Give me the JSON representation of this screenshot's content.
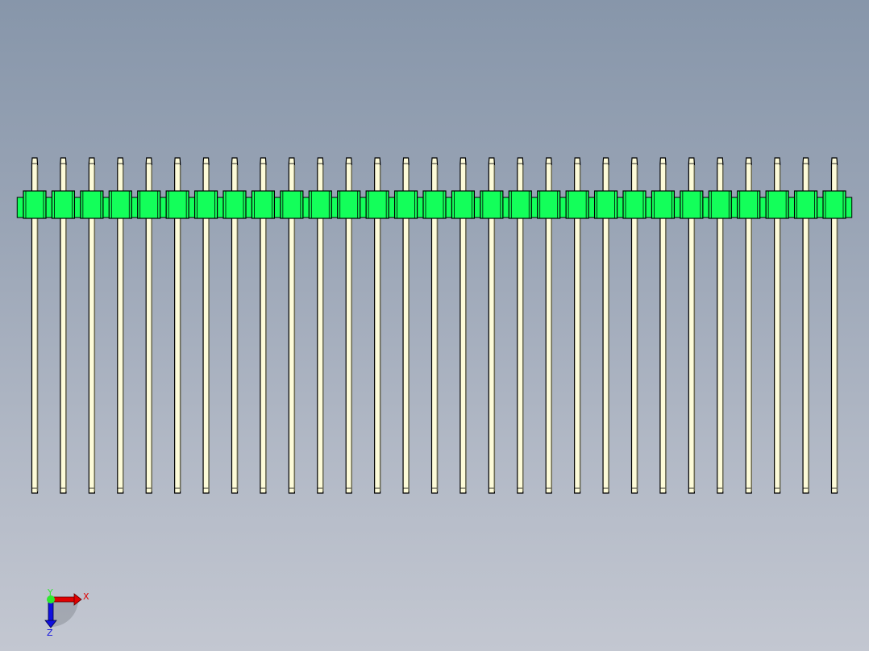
{
  "model": {
    "pin_count": 29,
    "colors": {
      "housing": "#13ff5a",
      "pin": "#fdfbd8",
      "edge": "#000000"
    }
  },
  "triad": {
    "x_label": "X",
    "y_label": "Y",
    "z_label": "Z",
    "colors": {
      "x": "#e00000",
      "y": "#2ee82e",
      "z": "#1010e0"
    }
  }
}
